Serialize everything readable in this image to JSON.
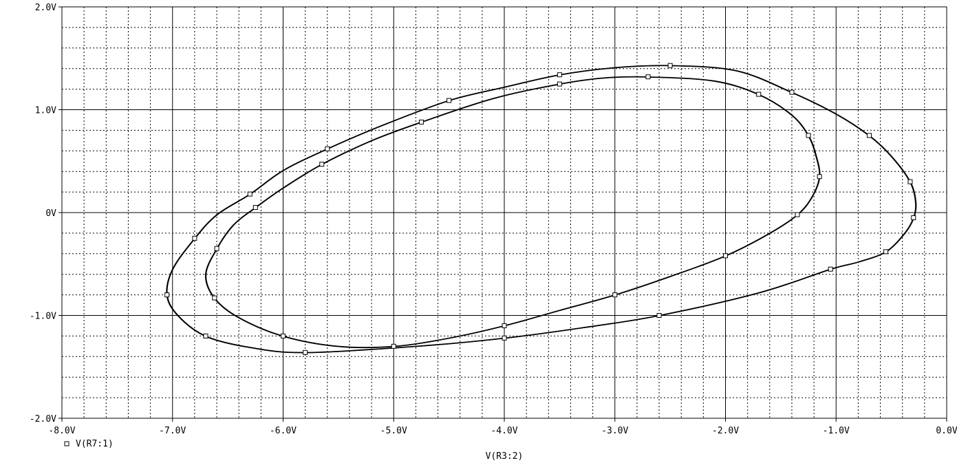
{
  "chart_data": {
    "type": "line",
    "subtype": "phase-portrait",
    "xlabel": "V(R3:2)",
    "ylabel": "",
    "xlim": [
      -8.0,
      0.0
    ],
    "ylim": [
      -2.0,
      2.0
    ],
    "x_ticks": [
      -8.0,
      -7.0,
      -6.0,
      -5.0,
      -4.0,
      -3.0,
      -2.0,
      -1.0,
      0.0
    ],
    "x_tick_labels": [
      "-8.0V",
      "-7.0V",
      "-6.0V",
      "-5.0V",
      "-4.0V",
      "-3.0V",
      "-2.0V",
      "-1.0V",
      "0.0V"
    ],
    "y_ticks": [
      2.0,
      1.0,
      0.0,
      -1.0,
      -2.0
    ],
    "y_tick_labels": [
      "2.0V",
      "1.0V",
      "0V",
      "-1.0V",
      "-2.0V"
    ],
    "grid": "major solid, minor dotted",
    "legend_position": "bottom-left",
    "series": [
      {
        "name": "V(R7:1)",
        "color": "#000000",
        "marker": "square",
        "outer_loop": [
          [
            -2.5,
            1.43
          ],
          [
            -1.9,
            1.38
          ],
          [
            -1.4,
            1.17
          ],
          [
            -1.0,
            0.96
          ],
          [
            -0.7,
            0.75
          ],
          [
            -0.5,
            0.55
          ],
          [
            -0.33,
            0.3
          ],
          [
            -0.28,
            0.1
          ],
          [
            -0.3,
            -0.05
          ],
          [
            -0.38,
            -0.2
          ],
          [
            -0.55,
            -0.38
          ],
          [
            -0.8,
            -0.48
          ],
          [
            -1.05,
            -0.55
          ],
          [
            -1.7,
            -0.78
          ],
          [
            -2.6,
            -1.0
          ],
          [
            -3.3,
            -1.12
          ],
          [
            -4.0,
            -1.22
          ],
          [
            -4.8,
            -1.3
          ],
          [
            -5.8,
            -1.36
          ],
          [
            -6.3,
            -1.31
          ],
          [
            -6.7,
            -1.2
          ],
          [
            -6.95,
            -1.0
          ],
          [
            -7.05,
            -0.8
          ],
          [
            -7.0,
            -0.55
          ],
          [
            -6.8,
            -0.25
          ],
          [
            -6.6,
            -0.02
          ],
          [
            -6.3,
            0.18
          ],
          [
            -6.0,
            0.41
          ],
          [
            -5.6,
            0.62
          ],
          [
            -5.1,
            0.85
          ],
          [
            -4.5,
            1.09
          ],
          [
            -4.0,
            1.22
          ],
          [
            -3.5,
            1.34
          ],
          [
            -3.0,
            1.41
          ],
          [
            -2.5,
            1.43
          ]
        ],
        "inner_loop": [
          [
            -2.7,
            1.32
          ],
          [
            -2.1,
            1.28
          ],
          [
            -1.7,
            1.15
          ],
          [
            -1.4,
            0.95
          ],
          [
            -1.25,
            0.75
          ],
          [
            -1.18,
            0.55
          ],
          [
            -1.15,
            0.35
          ],
          [
            -1.22,
            0.15
          ],
          [
            -1.35,
            -0.02
          ],
          [
            -1.6,
            -0.2
          ],
          [
            -2.0,
            -0.42
          ],
          [
            -2.5,
            -0.62
          ],
          [
            -3.0,
            -0.8
          ],
          [
            -3.5,
            -0.95
          ],
          [
            -4.0,
            -1.1
          ],
          [
            -4.5,
            -1.22
          ],
          [
            -5.0,
            -1.3
          ],
          [
            -5.5,
            -1.3
          ],
          [
            -6.0,
            -1.2
          ],
          [
            -6.4,
            -1.02
          ],
          [
            -6.62,
            -0.83
          ],
          [
            -6.7,
            -0.6
          ],
          [
            -6.6,
            -0.35
          ],
          [
            -6.45,
            -0.12
          ],
          [
            -6.25,
            0.05
          ],
          [
            -6.0,
            0.24
          ],
          [
            -5.65,
            0.47
          ],
          [
            -5.2,
            0.7
          ],
          [
            -4.75,
            0.88
          ],
          [
            -4.1,
            1.11
          ],
          [
            -3.5,
            1.25
          ],
          [
            -3.1,
            1.31
          ],
          [
            -2.7,
            1.32
          ]
        ]
      }
    ]
  }
}
